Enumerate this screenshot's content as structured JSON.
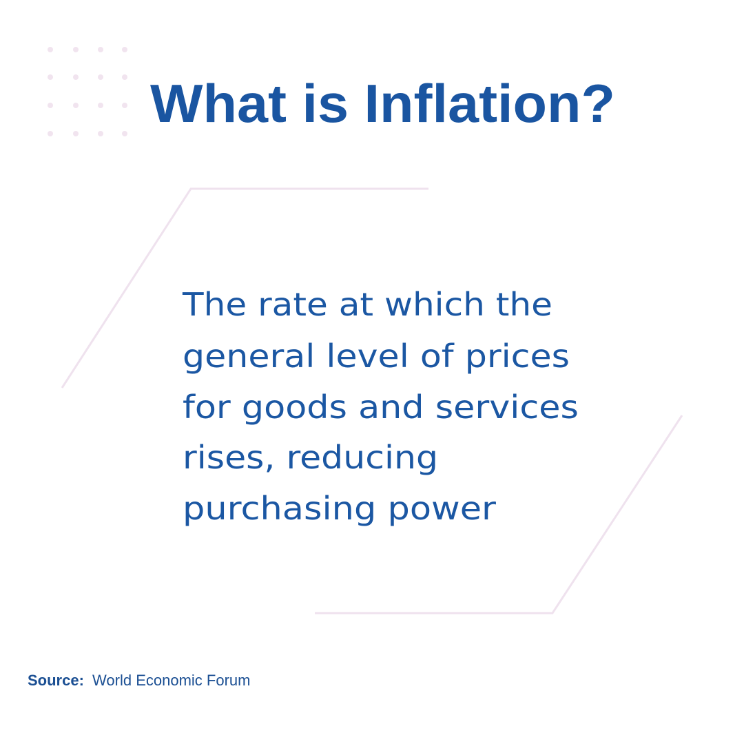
{
  "header": {
    "title": "What is Inflation?"
  },
  "definition": {
    "lines": [
      "The rate at which the",
      "general level of prices",
      "for goods and services",
      "rises, reducing",
      "purchasing power"
    ]
  },
  "source": {
    "label": "Source:",
    "text": "World Economic Forum"
  }
}
